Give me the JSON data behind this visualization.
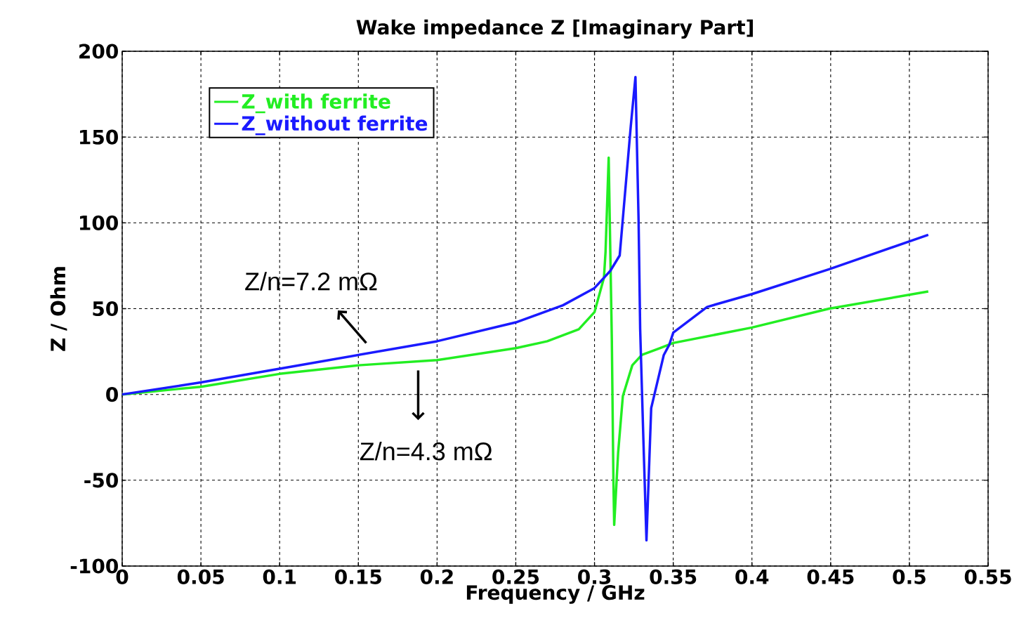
{
  "chart_data": {
    "type": "line",
    "title": "Wake impedance Z [Imaginary Part]",
    "xlabel": "Frequency / GHz",
    "ylabel": "Z / Ohm",
    "xlim": [
      0,
      0.55
    ],
    "xticks": [
      0,
      0.05,
      0.1,
      0.15,
      0.2,
      0.25,
      0.3,
      0.35,
      0.4,
      0.45,
      0.5,
      0.55
    ],
    "ylim": [
      -100,
      200
    ],
    "yticks": [
      -100,
      -50,
      0,
      50,
      100,
      150,
      200
    ],
    "grid": true,
    "legend": "top left",
    "marker": "none",
    "line_style": "solid",
    "annotations": [
      "Z/n=7.2 mΩ",
      "Z/n=4.3 mΩ"
    ],
    "series": [
      {
        "name": "Z_with ferrite",
        "color": "#22ee22",
        "x": [
          0,
          0.05,
          0.1,
          0.15,
          0.2,
          0.25,
          0.27,
          0.29,
          0.3,
          0.306,
          0.307,
          0.309,
          0.311,
          0.312,
          0.3125,
          0.315,
          0.318,
          0.324,
          0.33,
          0.3417,
          0.35,
          0.4,
          0.449,
          0.512
        ],
        "values": [
          0,
          4.5,
          12,
          17,
          20,
          27,
          31,
          38,
          48,
          68,
          83,
          138,
          32,
          -50,
          -76,
          -34,
          -1,
          17,
          23,
          27,
          30,
          39,
          50,
          60
        ]
      },
      {
        "name": "Z_without ferrite",
        "color": "#1a1aff",
        "x": [
          0,
          0.05,
          0.1,
          0.15,
          0.2,
          0.25,
          0.28,
          0.3,
          0.31,
          0.316,
          0.323,
          0.326,
          0.328,
          0.329,
          0.331,
          0.333,
          0.336,
          0.344,
          0.3475,
          0.35,
          0.3715,
          0.4,
          0.449,
          0.512
        ],
        "values": [
          0,
          7,
          15,
          23,
          31,
          42,
          52,
          62,
          72,
          81,
          156,
          185,
          101,
          38,
          -25,
          -85,
          -8,
          23,
          29,
          36,
          51,
          58.5,
          73,
          93
        ]
      }
    ]
  }
}
